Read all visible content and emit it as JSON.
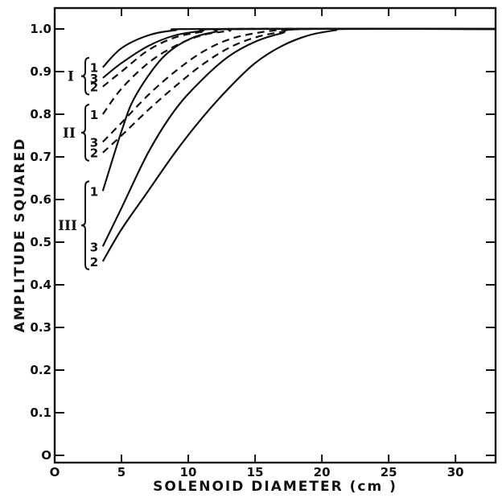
{
  "chart_data": {
    "type": "line",
    "title": "",
    "xlabel": "SOLENOID DIAMETER (cm )",
    "ylabel": "AMPLITUDE SQUARED",
    "xlim": [
      0,
      33
    ],
    "ylim": [
      0,
      1.05
    ],
    "x_ticks": [
      0,
      5,
      10,
      15,
      20,
      25,
      30
    ],
    "x_tick_labels": [
      "O",
      "5",
      "10",
      "15",
      "20",
      "25",
      "30"
    ],
    "y_ticks": [
      0,
      0.1,
      0.2,
      0.3,
      0.4,
      0.5,
      0.6,
      0.7,
      0.8,
      0.9,
      1.0
    ],
    "y_tick_labels": [
      "O",
      "0.1",
      "0.2",
      "0.3",
      "0.4",
      "0.5",
      "0.6",
      "0.7",
      "0.8",
      "0.9",
      "1.0"
    ],
    "grid": false,
    "series": [
      {
        "group": "I",
        "curve": "1",
        "style": "solid",
        "points": [
          [
            3.6,
            0.91
          ],
          [
            5,
            0.955
          ],
          [
            7,
            0.985
          ],
          [
            9,
            0.997
          ],
          [
            11,
            1.0
          ],
          [
            33,
            1.0
          ]
        ]
      },
      {
        "group": "I",
        "curve": "3",
        "style": "solid",
        "points": [
          [
            3.6,
            0.885
          ],
          [
            5,
            0.92
          ],
          [
            7,
            0.96
          ],
          [
            9,
            0.985
          ],
          [
            11,
            0.995
          ],
          [
            13,
            1.0
          ],
          [
            33,
            1.0
          ]
        ]
      },
      {
        "group": "I",
        "curve": "2",
        "style": "dashed",
        "points": [
          [
            3.6,
            0.865
          ],
          [
            5,
            0.9
          ],
          [
            7,
            0.95
          ],
          [
            9,
            0.98
          ],
          [
            11,
            0.993
          ],
          [
            13,
            1.0
          ],
          [
            33,
            1.0
          ]
        ]
      },
      {
        "group": "II",
        "curve": "1",
        "style": "dashed",
        "points": [
          [
            3.6,
            0.8
          ],
          [
            5,
            0.86
          ],
          [
            7,
            0.92
          ],
          [
            9,
            0.96
          ],
          [
            11,
            0.985
          ],
          [
            13,
            0.995
          ],
          [
            15,
            1.0
          ],
          [
            33,
            1.0
          ]
        ]
      },
      {
        "group": "II",
        "curve": "3",
        "style": "dashed",
        "points": [
          [
            3.6,
            0.735
          ],
          [
            5,
            0.78
          ],
          [
            7,
            0.845
          ],
          [
            9,
            0.9
          ],
          [
            11,
            0.945
          ],
          [
            13,
            0.975
          ],
          [
            15,
            0.99
          ],
          [
            17,
            0.998
          ],
          [
            19,
            1.0
          ],
          [
            33,
            1.0
          ]
        ]
      },
      {
        "group": "II",
        "curve": "2",
        "style": "dashed",
        "points": [
          [
            3.6,
            0.71
          ],
          [
            5,
            0.75
          ],
          [
            7,
            0.81
          ],
          [
            9,
            0.865
          ],
          [
            11,
            0.915
          ],
          [
            13,
            0.955
          ],
          [
            15,
            0.98
          ],
          [
            17,
            0.993
          ],
          [
            19,
            1.0
          ],
          [
            33,
            1.0
          ]
        ]
      },
      {
        "group": "III",
        "curve": "1",
        "style": "solid",
        "points": [
          [
            3.6,
            0.62
          ],
          [
            5,
            0.76
          ],
          [
            6,
            0.84
          ],
          [
            8,
            0.93
          ],
          [
            10,
            0.975
          ],
          [
            12,
            0.993
          ],
          [
            14,
            1.0
          ],
          [
            33,
            1.0
          ]
        ]
      },
      {
        "group": "III",
        "curve": "3",
        "style": "solid",
        "points": [
          [
            3.6,
            0.49
          ],
          [
            5,
            0.58
          ],
          [
            7,
            0.71
          ],
          [
            9,
            0.81
          ],
          [
            11,
            0.88
          ],
          [
            13,
            0.935
          ],
          [
            15,
            0.97
          ],
          [
            17,
            0.99
          ],
          [
            19,
            1.0
          ],
          [
            33,
            1.0
          ]
        ]
      },
      {
        "group": "III",
        "curve": "2",
        "style": "solid",
        "points": [
          [
            3.6,
            0.455
          ],
          [
            5,
            0.53
          ],
          [
            7,
            0.62
          ],
          [
            9,
            0.71
          ],
          [
            11,
            0.79
          ],
          [
            13,
            0.86
          ],
          [
            15,
            0.92
          ],
          [
            17,
            0.96
          ],
          [
            19,
            0.985
          ],
          [
            21,
            0.997
          ],
          [
            22,
            1.0
          ],
          [
            33,
            1.0
          ]
        ]
      }
    ],
    "annotations": [
      {
        "group": "I",
        "labels": [
          "1",
          "3",
          "2"
        ]
      },
      {
        "group": "II",
        "labels": [
          "1",
          "3",
          "2"
        ]
      },
      {
        "group": "III",
        "labels": [
          "1",
          "3",
          "2"
        ]
      }
    ]
  }
}
